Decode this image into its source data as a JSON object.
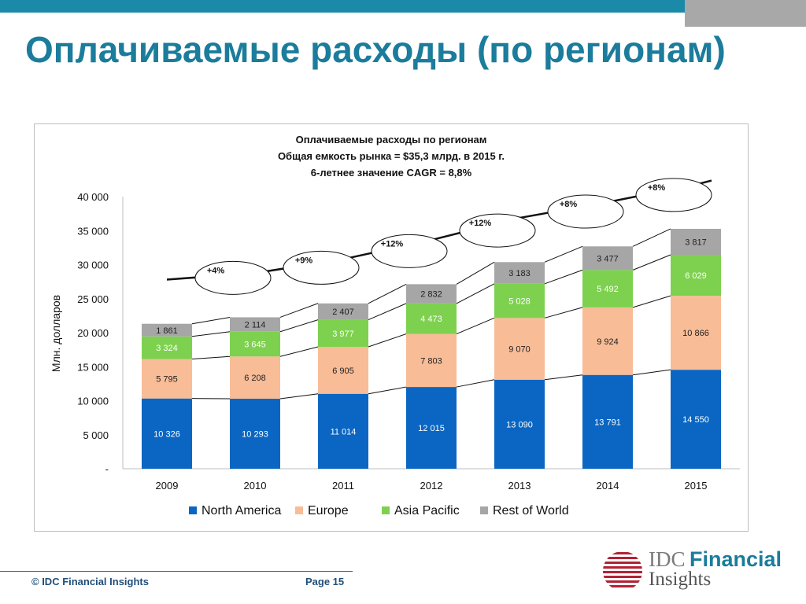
{
  "slide": {
    "title": "Оплачиваемые расходы (по регионам)",
    "footer_copyright": "© IDC Financial Insights",
    "footer_page": "Page 15",
    "logo": {
      "idc": "IDC",
      "financial": "Financial",
      "insights": "Insights"
    },
    "colors": {
      "bar": "#1b8aa8",
      "title": "#1b7c9c",
      "footer": "#1f4e79"
    }
  },
  "chart_data": {
    "type": "bar",
    "stacked": true,
    "title_lines": [
      "Оплачиваемые расходы по регионам",
      "Общая емкость рынка = $35,3 млрд. в 2015 г.",
      "6-летнее значение CAGR = 8,8%"
    ],
    "ylabel": "Млн. долларов",
    "ylim": [
      0,
      40000
    ],
    "yticks": [
      {
        "value": 0,
        "label": "-"
      },
      {
        "value": 5000,
        "label": "5 000"
      },
      {
        "value": 10000,
        "label": "10 000"
      },
      {
        "value": 15000,
        "label": "15 000"
      },
      {
        "value": 20000,
        "label": "20 000"
      },
      {
        "value": 25000,
        "label": "25 000"
      },
      {
        "value": 30000,
        "label": "30 000"
      },
      {
        "value": 35000,
        "label": "35 000"
      },
      {
        "value": 40000,
        "label": "40 000"
      }
    ],
    "categories": [
      "2009",
      "2010",
      "2011",
      "2012",
      "2013",
      "2014",
      "2015"
    ],
    "series": [
      {
        "name": "North America",
        "color": "#0a66c2",
        "label_color": "#ffffff",
        "values": [
          10326,
          10293,
          11014,
          12015,
          13090,
          13791,
          14550
        ],
        "labels": [
          "10 326",
          "10 293",
          "11 014",
          "12 015",
          "13 090",
          "13 791",
          "14 550"
        ]
      },
      {
        "name": "Europe",
        "color": "#f8bc97",
        "label_color": "#222222",
        "values": [
          5795,
          6208,
          6905,
          7803,
          9070,
          9924,
          10866
        ],
        "labels": [
          "5 795",
          "6 208",
          "6 905",
          "7 803",
          "9 070",
          "9 924",
          "10 866"
        ]
      },
      {
        "name": "Asia Pacific",
        "color": "#7dd14f",
        "label_color": "#ffffff",
        "values": [
          3324,
          3645,
          3977,
          4473,
          5028,
          5492,
          6029
        ],
        "labels": [
          "3 324",
          "3 645",
          "3 977",
          "4 473",
          "5 028",
          "5 492",
          "6 029"
        ]
      },
      {
        "name": "Rest of World",
        "color": "#a6a6a6",
        "label_color": "#222222",
        "values": [
          1861,
          2114,
          2407,
          2832,
          3183,
          3477,
          3817
        ],
        "labels": [
          "1 861",
          "2 114",
          "2 407",
          "2 832",
          "3 183",
          "3 477",
          "3 817"
        ]
      }
    ],
    "growth_labels": [
      "+4%",
      "+9%",
      "+12%",
      "+12%",
      "+8%",
      "+8%"
    ],
    "legend_position": "bottom",
    "grid": false
  }
}
